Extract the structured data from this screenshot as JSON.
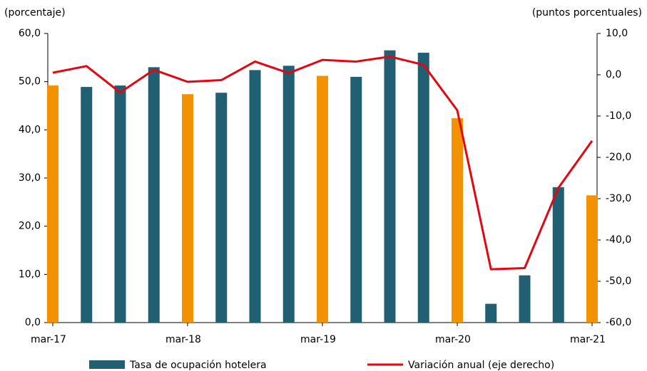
{
  "chart_data": {
    "type": "bar-line",
    "y_label": "(porcentaje)",
    "y2_label": "(puntos porcentuales)",
    "categories": [
      "mar-17",
      null,
      null,
      null,
      "mar-18",
      null,
      null,
      null,
      "mar-19",
      null,
      null,
      null,
      "mar-20",
      null,
      null,
      null,
      "mar-21"
    ],
    "series": [
      {
        "name": "Tasa de ocupación hotelera",
        "type": "bar",
        "color": "#215f73",
        "colors": [
          "#f39200",
          "#215f73",
          "#215f73",
          "#215f73",
          "#f39200",
          "#215f73",
          "#215f73",
          "#215f73",
          "#f39200",
          "#215f73",
          "#215f73",
          "#215f73",
          "#f39200",
          "#215f73",
          "#215f73",
          "#215f73",
          "#f39200"
        ],
        "values": [
          49.2,
          48.9,
          49.2,
          53.0,
          47.4,
          47.7,
          52.4,
          53.3,
          51.2,
          51.0,
          56.5,
          56.0,
          42.4,
          3.9,
          9.8,
          28.1,
          26.4
        ]
      },
      {
        "name": "Variación anual (eje derecho)",
        "type": "line",
        "axis": "y2",
        "color": "#e30613",
        "values": [
          0.5,
          2.1,
          -4.3,
          1.2,
          -1.7,
          -1.3,
          3.2,
          0.4,
          3.6,
          3.2,
          4.4,
          2.4,
          -8.6,
          -47.1,
          -46.8,
          -27.4,
          -16.0
        ]
      }
    ],
    "ylim": [
      0,
      60
    ],
    "yticks": [
      {
        "value": 0,
        "label": "0,0"
      },
      {
        "value": 10,
        "label": "10,0"
      },
      {
        "value": 20,
        "label": "20,0"
      },
      {
        "value": 30,
        "label": "30,0"
      },
      {
        "value": 40,
        "label": "40,0"
      },
      {
        "value": 50,
        "label": "50,0"
      },
      {
        "value": 60,
        "label": "60,0"
      }
    ],
    "y2lim": [
      -60,
      10
    ],
    "y2ticks": [
      {
        "value": -60,
        "label": "-60,0"
      },
      {
        "value": -50,
        "label": "-50,0"
      },
      {
        "value": -40,
        "label": "-40,0"
      },
      {
        "value": -30,
        "label": "-30,0"
      },
      {
        "value": -20,
        "label": "-20,0"
      },
      {
        "value": -10,
        "label": "-10,0"
      },
      {
        "value": 0,
        "label": "0,0"
      },
      {
        "value": 10,
        "label": "10,0"
      }
    ],
    "legend": "bottom"
  }
}
